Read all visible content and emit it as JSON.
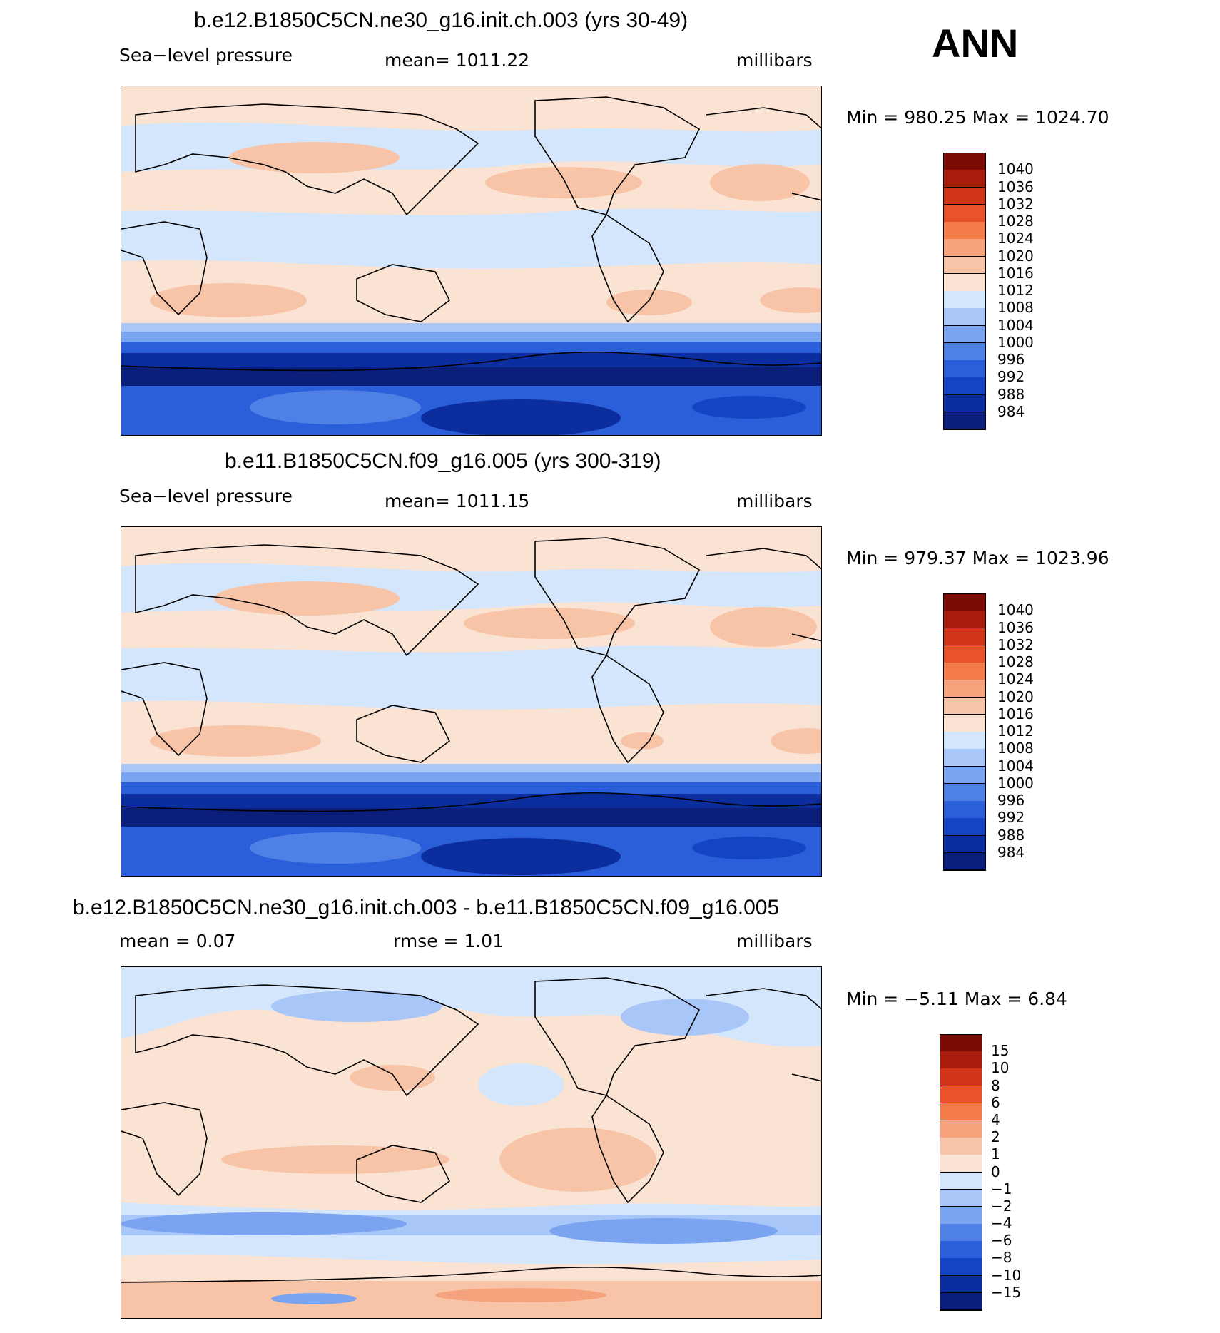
{
  "season": "ANN",
  "colors": {
    "abs_scale": [
      "#0a1e7a",
      "#0c2d9e",
      "#1444c4",
      "#2a5fd9",
      "#4f80e6",
      "#7aa3f0",
      "#a8c6f7",
      "#d4e6fb",
      "#fbe3d3",
      "#f8c4a8",
      "#f6a27c",
      "#f37b48",
      "#e9532a",
      "#d13517",
      "#a81c0c",
      "#7a0c05"
    ],
    "diff_scale": [
      "#0a1e7a",
      "#0c2d9e",
      "#1444c4",
      "#2a5fd9",
      "#4f80e6",
      "#7aa3f0",
      "#a8c6f7",
      "#d4e6fb",
      "#fbe3d3",
      "#f8c4a8",
      "#f6a27c",
      "#f37b48",
      "#e9532a",
      "#d13517",
      "#a81c0c",
      "#7a0c05"
    ]
  },
  "panels": [
    {
      "title": "b.e12.B1850C5CN.ne30_g16.init.ch.003 (yrs 30-49)",
      "left_label": "Sea−level pressure",
      "center_label": "mean=  1011.22",
      "units": "millibars",
      "minmax": "Min  =  980.25  Max  =  1024.70",
      "colorbar_labels": [
        "1040",
        "1036",
        "1032",
        "1028",
        "1024",
        "1020",
        "1016",
        "1012",
        "1008",
        "1004",
        "1000",
        "996",
        "992",
        "988",
        "984"
      ]
    },
    {
      "title": "b.e11.B1850C5CN.f09_g16.005 (yrs 300-319)",
      "left_label": "Sea−level pressure",
      "center_label": "mean=  1011.15",
      "units": "millibars",
      "minmax": "Min  =  979.37  Max  =  1023.96",
      "colorbar_labels": [
        "1040",
        "1036",
        "1032",
        "1028",
        "1024",
        "1020",
        "1016",
        "1012",
        "1008",
        "1004",
        "1000",
        "996",
        "992",
        "988",
        "984"
      ]
    },
    {
      "title": "b.e12.B1850C5CN.ne30_g16.init.ch.003 - b.e11.B1850C5CN.f09_g16.005",
      "left_label": "mean  =     0.07",
      "center_label": "rmse  =     1.01",
      "units": "millibars",
      "minmax": "Min  =    −5.11  Max  =      6.84",
      "colorbar_labels": [
        "15",
        "10",
        "8",
        "6",
        "4",
        "2",
        "1",
        "0",
        "−1",
        "−2",
        "−4",
        "−6",
        "−8",
        "−10",
        "−15"
      ]
    }
  ]
}
